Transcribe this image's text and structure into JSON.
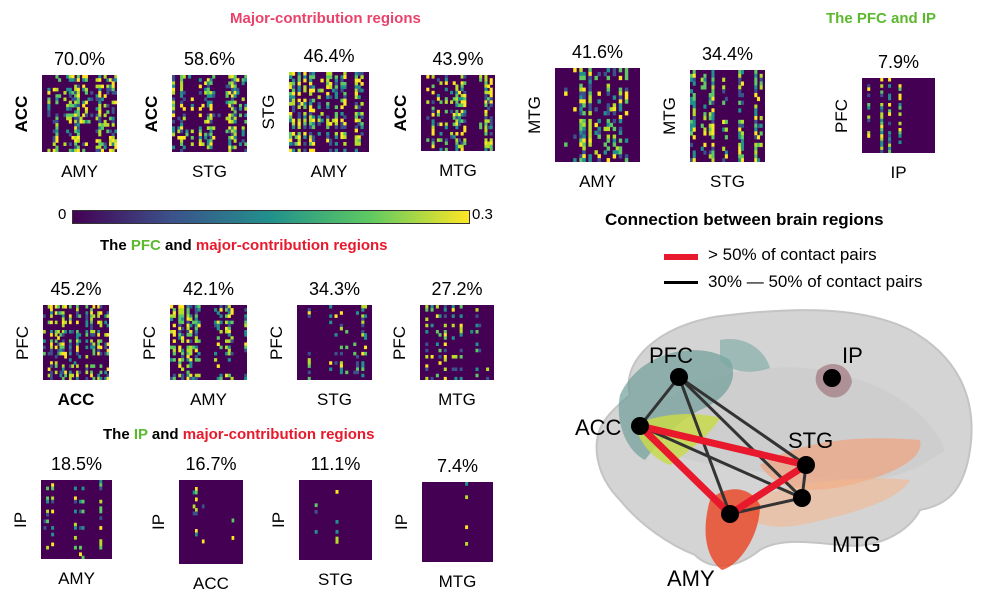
{
  "colors": {
    "green": "#5cb82e",
    "red": "#e8192c",
    "pink": "#e8436a",
    "viridis_dark": "#440154",
    "strong_link": "#e8192c",
    "weak_link": "#000000"
  },
  "titles": {
    "major": "Major-contribution regions",
    "pfc_ip": "The PFC and IP",
    "pfc_part1": "The ",
    "pfc_part2": "PFC",
    "pfc_part3": " and ",
    "pfc_part4": "major-contribution regions",
    "ip_part1": "The ",
    "ip_part2": "IP",
    "ip_part3": " and ",
    "ip_part4": "major-contribution regions",
    "connection": "Connection between brain regions"
  },
  "colorbar": {
    "min": "0",
    "max": "0.3"
  },
  "legend": {
    "strong": "> 50% of contact pairs",
    "weak": "30% — 50% of contact pairs"
  },
  "row1": [
    {
      "pct": "70.0%",
      "y": "ACC",
      "x": "AMY",
      "ybold": true,
      "xbold": false
    },
    {
      "pct": "58.6%",
      "y": "ACC",
      "x": "STG",
      "ybold": true,
      "xbold": false
    },
    {
      "pct": "46.4%",
      "y": "STG",
      "x": "AMY",
      "ybold": false,
      "xbold": false
    },
    {
      "pct": "43.9%",
      "y": "ACC",
      "x": "MTG",
      "ybold": true,
      "xbold": false
    },
    {
      "pct": "41.6%",
      "y": "MTG",
      "x": "AMY",
      "ybold": false,
      "xbold": false
    },
    {
      "pct": "34.4%",
      "y": "MTG",
      "x": "STG",
      "ybold": false,
      "xbold": false
    },
    {
      "pct": "7.9%",
      "y": "PFC",
      "x": "IP",
      "ybold": false,
      "xbold": false
    }
  ],
  "row2": [
    {
      "pct": "45.2%",
      "y": "PFC",
      "x": "ACC",
      "xbold": true
    },
    {
      "pct": "42.1%",
      "y": "PFC",
      "x": "AMY",
      "xbold": false
    },
    {
      "pct": "34.3%",
      "y": "PFC",
      "x": "STG",
      "xbold": false
    },
    {
      "pct": "27.2%",
      "y": "PFC",
      "x": "MTG",
      "xbold": false
    }
  ],
  "row3": [
    {
      "pct": "18.5%",
      "y": "IP",
      "x": "AMY"
    },
    {
      "pct": "16.7%",
      "y": "IP",
      "x": "ACC"
    },
    {
      "pct": "11.1%",
      "y": "IP",
      "x": "STG"
    },
    {
      "pct": "7.4%",
      "y": "IP",
      "x": "MTG"
    }
  ],
  "brain": {
    "nodes": [
      "PFC",
      "IP",
      "ACC",
      "STG",
      "MTG",
      "AMY"
    ]
  }
}
